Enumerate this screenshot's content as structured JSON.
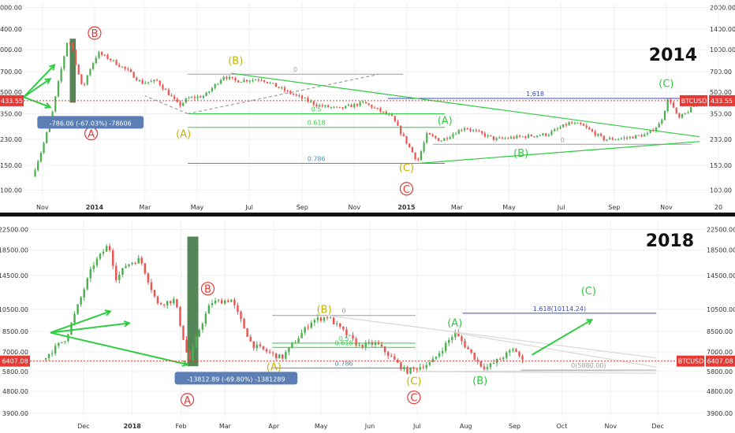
{
  "colors": {
    "background": "#ffffff",
    "grid": "#eef0f3",
    "separator": "#111111",
    "up": "#4caf50",
    "down": "#ef5350",
    "wave_green": "#2ecc40",
    "wave_yellow": "#c8b400",
    "wave_red": "#e53935",
    "fib_gray": "#9e9e9e",
    "fib_blue": "#3b4cc0",
    "fib_teal": "#4a90b0",
    "price_badge": "#e53935",
    "info_badge": "#5b7fb5"
  },
  "chart_data": [
    {
      "id": "btc-2014",
      "type": "candlestick",
      "title": "2014",
      "symbol": "BTCUSD",
      "last_price": "433.55",
      "y_scale": "log",
      "ylim": [
        85,
        2150
      ],
      "y_ticks": [
        2000,
        1400,
        1000,
        700,
        500,
        350,
        230,
        150,
        100
      ],
      "y_tick_labels": [
        "2000.00",
        "1400.00",
        "1000.00",
        "700.00",
        "500.00",
        "350.00",
        "230.00",
        "150.00",
        "100.00"
      ],
      "xlim": [
        "2013-10-10",
        "2015-12-20"
      ],
      "x_ticks": [
        "2013-11-01",
        "2014-01-01",
        "2014-03-01",
        "2014-05-01",
        "2014-07-01",
        "2014-09-01",
        "2014-11-01",
        "2015-01-01",
        "2015-03-01",
        "2015-05-01",
        "2015-07-01",
        "2015-09-01",
        "2015-11-01",
        "2016-01-01"
      ],
      "x_tick_labels": [
        "Nov",
        "2014",
        "Mar",
        "May",
        "Jul",
        "Sep",
        "Nov",
        "2015",
        "Mar",
        "May",
        "Jul",
        "Sep",
        "Nov",
        "20"
      ],
      "price_path": [
        [
          "2013-10-20",
          125
        ],
        [
          "2013-11-01",
          200
        ],
        [
          "2013-11-12",
          340
        ],
        [
          "2013-11-20",
          600
        ],
        [
          "2013-11-30",
          1150
        ],
        [
          "2013-12-05",
          1100
        ],
        [
          "2013-12-10",
          800
        ],
        [
          "2013-12-18",
          520
        ],
        [
          "2013-12-25",
          700
        ],
        [
          "2014-01-05",
          950
        ],
        [
          "2014-01-20",
          850
        ],
        [
          "2014-02-10",
          700
        ],
        [
          "2014-02-25",
          580
        ],
        [
          "2014-03-15",
          600
        ],
        [
          "2014-04-10",
          400
        ],
        [
          "2014-04-20",
          450
        ],
        [
          "2014-05-10",
          470
        ],
        [
          "2014-06-01",
          650
        ],
        [
          "2014-06-15",
          600
        ],
        [
          "2014-07-15",
          620
        ],
        [
          "2014-08-15",
          500
        ],
        [
          "2014-09-20",
          400
        ],
        [
          "2014-10-15",
          380
        ],
        [
          "2014-11-12",
          420
        ],
        [
          "2014-12-15",
          330
        ],
        [
          "2015-01-14",
          160
        ],
        [
          "2015-01-25",
          250
        ],
        [
          "2015-02-10",
          225
        ],
        [
          "2015-03-10",
          280
        ],
        [
          "2015-04-15",
          230
        ],
        [
          "2015-05-15",
          240
        ],
        [
          "2015-06-15",
          250
        ],
        [
          "2015-07-10",
          300
        ],
        [
          "2015-07-25",
          290
        ],
        [
          "2015-08-20",
          230
        ],
        [
          "2015-09-15",
          235
        ],
        [
          "2015-10-10",
          250
        ],
        [
          "2015-10-25",
          300
        ],
        [
          "2015-11-04",
          460
        ],
        [
          "2015-11-15",
          320
        ],
        [
          "2015-11-30",
          380
        ],
        [
          "2015-12-10",
          433.55
        ]
      ],
      "waves": [
        {
          "text": "B",
          "date": "2014-01-01",
          "price": 1250,
          "color": "red",
          "circled": true
        },
        {
          "text": "A",
          "date": "2013-12-28",
          "price": 240,
          "color": "red",
          "circled": true
        },
        {
          "text": "(B)",
          "date": "2014-06-15",
          "price": 800,
          "color": "yellow"
        },
        {
          "text": "(A)",
          "date": "2014-04-15",
          "price": 240,
          "color": "yellow"
        },
        {
          "text": "(A)",
          "date": "2015-02-15",
          "price": 300,
          "color": "green"
        },
        {
          "text": "(B)",
          "date": "2015-05-15",
          "price": 175,
          "color": "green"
        },
        {
          "text": "(C)",
          "date": "2015-01-01",
          "price": 138,
          "color": "yellow"
        },
        {
          "text": "C",
          "date": "2015-01-01",
          "price": 97,
          "color": "red",
          "circled": true
        },
        {
          "text": "(C)",
          "date": "2015-11-01",
          "price": 550,
          "color": "green"
        }
      ],
      "fib": [
        {
          "label": "0",
          "level": 670,
          "from": "2014-04-20",
          "to": "2014-12-28",
          "color": "gray"
        },
        {
          "label": "0.5",
          "level": 350,
          "from": "2014-04-20",
          "to": "2015-02-15",
          "color": "green"
        },
        {
          "label": "0.618",
          "level": 280,
          "from": "2014-04-20",
          "to": "2015-02-15",
          "color": "green"
        },
        {
          "label": "0.786",
          "level": 155,
          "from": "2014-04-20",
          "to": "2015-02-15",
          "color": "teal"
        },
        {
          "label": "1.618",
          "level": 450,
          "from": "2014-12-10",
          "to": "2015-11-20",
          "color": "blue"
        },
        {
          "label": "0",
          "level": 212,
          "from": "2015-02-01",
          "to": "2015-12-01",
          "color": "gray"
        }
      ],
      "trendlines": [
        {
          "from": [
            "2014-06-10",
            680
          ],
          "to": [
            "2015-12-10",
            240
          ],
          "color": "green"
        },
        {
          "from": [
            "2015-01-15",
            155
          ],
          "to": [
            "2015-12-10",
            222
          ],
          "color": "green"
        },
        {
          "from": [
            "2014-04-20",
            350
          ],
          "to": [
            "2014-11-30",
            670
          ],
          "color": "gray",
          "dashed": true
        },
        {
          "from": [
            "2014-04-20",
            350
          ],
          "to": [
            "2014-03-01",
            470
          ],
          "color": "gray",
          "dashed": true
        }
      ],
      "arrows": [
        {
          "from": [
            "2013-10-10",
            460
          ],
          "to": [
            "2013-11-10",
            620
          ],
          "color": "green"
        },
        {
          "from": [
            "2013-10-10",
            460
          ],
          "to": [
            "2013-11-10",
            390
          ],
          "color": "green"
        },
        {
          "from": [
            "2013-10-10",
            460
          ],
          "to": [
            "2013-11-15",
            780
          ],
          "color": "green"
        }
      ],
      "highlight": {
        "from": "2013-12-03",
        "to": "2013-12-10",
        "low": 420,
        "high": 1200
      },
      "info_box": {
        "text": "-786.06 (-67.03%) -78606",
        "date": "2013-10-26",
        "price": 300
      }
    },
    {
      "id": "btc-2018",
      "type": "candlestick",
      "title": "2018",
      "symbol": "BTCUSD",
      "last_price": "6407.08",
      "y_scale": "log",
      "ylim": [
        3750,
        24500
      ],
      "y_ticks": [
        22500,
        18500,
        14500,
        10500,
        8500,
        7000,
        5800,
        4800,
        3900
      ],
      "y_tick_labels": [
        "22500.00",
        "18500.00",
        "14500.00",
        "10500.00",
        "8500.00",
        "7000.00",
        "5800.00",
        "4800.00",
        "3900.00"
      ],
      "xlim": [
        "2017-10-28",
        "2018-12-31"
      ],
      "x_ticks": [
        "2017-12-01",
        "2018-01-01",
        "2018-02-01",
        "2018-03-01",
        "2018-04-01",
        "2018-05-01",
        "2018-06-01",
        "2018-07-01",
        "2018-08-01",
        "2018-09-01",
        "2018-10-01",
        "2018-11-01",
        "2018-12-01"
      ],
      "x_tick_labels": [
        "Dec",
        "2018",
        "Feb",
        "Mar",
        "Apr",
        "May",
        "Jun",
        "Jul",
        "Aug",
        "Sep",
        "Oct",
        "Nov",
        "Dec"
      ],
      "price_path": [
        [
          "2017-11-05",
          6500
        ],
        [
          "2017-11-20",
          8000
        ],
        [
          "2017-12-07",
          16000
        ],
        [
          "2017-12-17",
          19500
        ],
        [
          "2017-12-22",
          14000
        ],
        [
          "2017-12-28",
          16000
        ],
        [
          "2018-01-06",
          17000
        ],
        [
          "2018-01-17",
          11000
        ],
        [
          "2018-01-28",
          11500
        ],
        [
          "2018-02-06",
          6300
        ],
        [
          "2018-02-12",
          8500
        ],
        [
          "2018-02-20",
          11200
        ],
        [
          "2018-03-05",
          11500
        ],
        [
          "2018-03-18",
          7500
        ],
        [
          "2018-04-01",
          6800
        ],
        [
          "2018-04-06",
          6600
        ],
        [
          "2018-04-25",
          9400
        ],
        [
          "2018-05-05",
          9800
        ],
        [
          "2018-05-25",
          7400
        ],
        [
          "2018-06-05",
          7600
        ],
        [
          "2018-06-24",
          5800
        ],
        [
          "2018-07-10",
          6300
        ],
        [
          "2018-07-25",
          8400
        ],
        [
          "2018-08-10",
          6200
        ],
        [
          "2018-08-14",
          6000
        ],
        [
          "2018-09-01",
          7200
        ],
        [
          "2018-09-06",
          6407.08
        ]
      ],
      "waves": [
        {
          "text": "B",
          "date": "2018-02-18",
          "price": 12400,
          "color": "red",
          "circled": true
        },
        {
          "text": "A",
          "date": "2018-02-05",
          "price": 4300,
          "color": "red",
          "circled": true
        },
        {
          "text": "(B)",
          "date": "2018-05-03",
          "price": 10200,
          "color": "yellow"
        },
        {
          "text": "(A)",
          "date": "2018-04-01",
          "price": 5900,
          "color": "yellow"
        },
        {
          "text": "(C)",
          "date": "2018-06-29",
          "price": 5150,
          "color": "yellow"
        },
        {
          "text": "C",
          "date": "2018-06-29",
          "price": 4400,
          "color": "red",
          "circled": true
        },
        {
          "text": "(A)",
          "date": "2018-07-25",
          "price": 9000,
          "color": "green"
        },
        {
          "text": "(B)",
          "date": "2018-08-10",
          "price": 5180,
          "color": "green"
        },
        {
          "text": "(C)",
          "date": "2018-10-18",
          "price": 12200,
          "color": "green"
        }
      ],
      "fib": [
        {
          "label": "0",
          "level": 9900,
          "from": "2018-03-31",
          "to": "2018-06-30",
          "color": "gray"
        },
        {
          "label": "0.5",
          "level": 7600,
          "from": "2018-03-31",
          "to": "2018-06-30",
          "color": "green"
        },
        {
          "label": "0.618",
          "level": 7300,
          "from": "2018-03-31",
          "to": "2018-06-30",
          "color": "green"
        },
        {
          "label": "0.786",
          "level": 6000,
          "from": "2018-03-31",
          "to": "2018-06-30",
          "color": "teal"
        },
        {
          "label": "1.618(10114.24)",
          "level": 10114.24,
          "from": "2018-07-30",
          "to": "2018-11-30",
          "color": "blue"
        },
        {
          "label": "0(5880.00)",
          "level": 5880,
          "from": "2018-09-05",
          "to": "2018-11-30",
          "color": "gray"
        }
      ],
      "trendlines": [
        {
          "from": [
            "2018-05-05",
            9900
          ],
          "to": [
            "2018-11-30",
            6600
          ],
          "color": "white"
        },
        {
          "from": [
            "2018-07-25",
            8400
          ],
          "to": [
            "2018-11-30",
            6050
          ],
          "color": "white"
        },
        {
          "from": [
            "2018-07-01",
            5800
          ],
          "to": [
            "2018-11-30",
            5850
          ],
          "color": "white"
        },
        {
          "from": [
            "2018-07-01",
            5800
          ],
          "to": [
            "2018-11-30",
            5700
          ],
          "color": "white"
        }
      ],
      "arrows": [
        {
          "from": [
            "2017-11-10",
            8400
          ],
          "to": [
            "2017-12-18",
            10300
          ],
          "color": "green"
        },
        {
          "from": [
            "2017-11-10",
            8400
          ],
          "to": [
            "2017-12-30",
            9200
          ],
          "color": "green"
        },
        {
          "from": [
            "2017-11-10",
            8400
          ],
          "to": [
            "2018-02-05",
            6200
          ],
          "color": "green"
        },
        {
          "from": [
            "2018-09-12",
            6800
          ],
          "to": [
            "2018-10-20",
            9500
          ],
          "color": "green"
        }
      ],
      "highlight": {
        "from": "2018-02-05",
        "to": "2018-02-12",
        "low": 6100,
        "high": 21000
      },
      "info_box": {
        "text": "-13812.89 (-69.80%) -1381289",
        "date": "2018-01-28",
        "price": 5400
      }
    }
  ]
}
